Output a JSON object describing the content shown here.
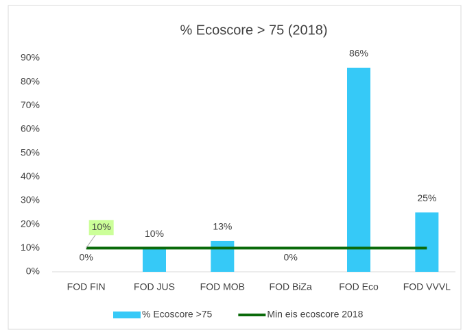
{
  "chart_data": {
    "type": "bar",
    "title": "% Ecoscore > 75 (2018)",
    "categories": [
      "FOD FIN",
      "FOD JUS",
      "FOD MOB",
      "FOD BiZa",
      "FOD Eco",
      "FOD VVVL"
    ],
    "series": [
      {
        "name": "% Ecoscore >75",
        "type": "bar",
        "color": "#36c9f7",
        "values": [
          0,
          10,
          13,
          0,
          86,
          25
        ],
        "value_labels": [
          "0%",
          "10%",
          "13%",
          "0%",
          "86%",
          "25%"
        ]
      },
      {
        "name": "Min eis ecoscore 2018",
        "type": "line",
        "color": "#0a6a0a",
        "values": [
          10,
          10,
          10,
          10,
          10,
          10
        ],
        "value_labels": [
          "10%",
          null,
          null,
          null,
          null,
          null
        ]
      }
    ],
    "ylim": [
      0,
      90
    ],
    "yticks": [
      {
        "value": 0,
        "label": "0%"
      },
      {
        "value": 10,
        "label": "10%"
      },
      {
        "value": 20,
        "label": "20%"
      },
      {
        "value": 30,
        "label": "30%"
      },
      {
        "value": 40,
        "label": "40%"
      },
      {
        "value": 50,
        "label": "50%"
      },
      {
        "value": 60,
        "label": "60%"
      },
      {
        "value": 70,
        "label": "70%"
      },
      {
        "value": 80,
        "label": "80%"
      },
      {
        "value": 90,
        "label": "90%"
      }
    ],
    "grid": false,
    "legend": "bottom"
  }
}
